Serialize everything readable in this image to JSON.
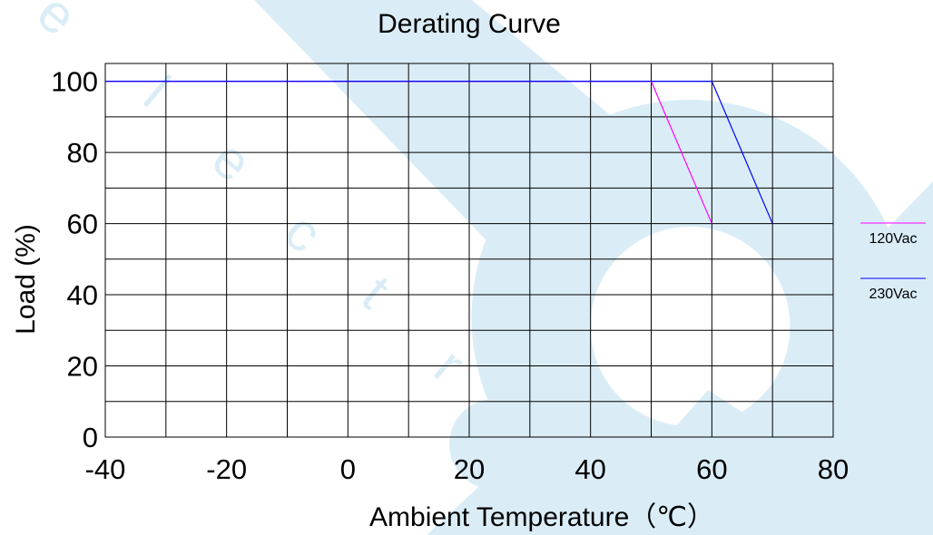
{
  "chart_data": {
    "type": "line",
    "title": "Derating Curve",
    "xlabel": "Ambient Temperature（℃）",
    "ylabel": "Load (%)",
    "xlim": [
      -40,
      80
    ],
    "ylim": [
      0,
      105
    ],
    "grid": true,
    "x_tick_labels": [
      "-40",
      "-20",
      "0",
      "20",
      "40",
      "60",
      "80"
    ],
    "y_tick_labels": [
      "0",
      "20",
      "40",
      "60",
      "80",
      "100"
    ],
    "series": [
      {
        "name": "120Vac",
        "color": "#ff00ff",
        "points": [
          [
            -40,
            100
          ],
          [
            50,
            100
          ],
          [
            60,
            60
          ]
        ]
      },
      {
        "name": "230Vac",
        "color": "#0000ff",
        "points": [
          [
            -40,
            100
          ],
          [
            60,
            100
          ],
          [
            70,
            60
          ]
        ]
      }
    ],
    "legend": "right"
  },
  "watermark": {
    "text": "electron",
    "color": "#daedf7"
  }
}
